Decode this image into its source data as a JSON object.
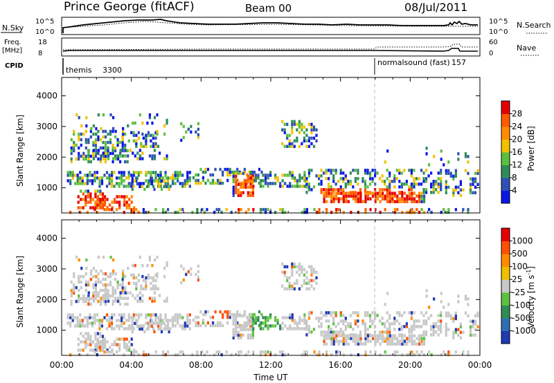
{
  "header": {
    "station": "Prince George (fitACF)",
    "beam": "Beam 00",
    "date": "08/Jul/2011"
  },
  "params": {
    "nsky_label": "N.Sky",
    "nsky_ticks": [
      "10^5",
      "10^0"
    ],
    "nsearch_label": "N.Search",
    "nsearch_ticks": [
      "10^5",
      "10^0"
    ],
    "freq_label": "Freq.",
    "freq_unit": "[MHz]",
    "freq_ticks": [
      "18",
      "8"
    ],
    "nave_label": "Nave",
    "nave_ticks": [
      "60",
      "0"
    ],
    "cpid_label": "CPID",
    "cpid_modes": [
      {
        "name": "themis",
        "id": "3300"
      },
      {
        "name": "normalsound (fast)",
        "id": "157"
      }
    ]
  },
  "chart_data": [
    {
      "type": "heatmap",
      "panel": "power",
      "ylabel": "Slant Range [km]",
      "ylim": [
        180,
        4600
      ],
      "yticks": [
        "1000",
        "2000",
        "3000",
        "4000"
      ],
      "ytick_values": [
        1000,
        2000,
        3000,
        4000
      ],
      "colorbar": {
        "label": "Power [dB]",
        "ticks": [
          "4",
          "8",
          "12",
          "16",
          "20",
          "24",
          "28"
        ],
        "colors": [
          "#0a17e6",
          "#2e50b4",
          "#2f8c5a",
          "#5dbf3f",
          "#f2c200",
          "#ff8c00",
          "#ff5a00",
          "#e60000"
        ]
      }
    },
    {
      "type": "heatmap",
      "panel": "velocity",
      "ylabel": "Slant Range [km]",
      "ylim": [
        180,
        4600
      ],
      "yticks": [
        "1000",
        "2000",
        "3000",
        "4000"
      ],
      "ytick_values": [
        1000,
        2000,
        3000,
        4000
      ],
      "xlabel": "Time UT",
      "xticks": [
        "00:00",
        "04:00",
        "08:00",
        "12:00",
        "16:00",
        "20:00",
        "00:00"
      ],
      "xtick_hours": [
        0,
        4,
        8,
        12,
        16,
        20,
        24
      ],
      "colorbar": {
        "label": "Velocity [m s",
        "label_sup": "-1",
        "label_end": "]",
        "ticks": [
          "1000",
          "500",
          "100",
          "25",
          "-25",
          "-100",
          "-500",
          "-1000"
        ],
        "colors": [
          "#1f3ab4",
          "#2e6fb4",
          "#2e8c57",
          "#5fc23f",
          "#c8c8c8",
          "#f0c000",
          "#ff8c00",
          "#ff5000",
          "#e60000"
        ]
      }
    }
  ]
}
